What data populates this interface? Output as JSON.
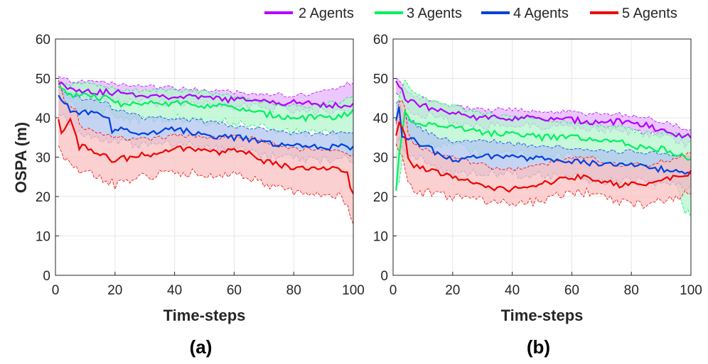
{
  "legend": [
    {
      "label": "2 Agents",
      "color": "#b000ff"
    },
    {
      "label": "3 Agents",
      "color": "#00f060"
    },
    {
      "label": "4 Agents",
      "color": "#0040e0"
    },
    {
      "label": "5 Agents",
      "color": "#f00000"
    }
  ],
  "chart_data": [
    {
      "type": "line",
      "panel_label": "(a)",
      "xlabel": "Time-steps",
      "ylabel": "OSPA (m)",
      "xlim": [
        0,
        100
      ],
      "ylim": [
        0,
        60
      ],
      "xticks": [
        "0",
        "20",
        "40",
        "60",
        "80",
        "100"
      ],
      "yticks": [
        "0",
        "10",
        "20",
        "30",
        "40",
        "50",
        "60"
      ],
      "grid": true,
      "series": [
        {
          "name": "2 Agents",
          "color": "#b000ff",
          "fill": "#e6b3ff",
          "x": [
            1,
            2,
            5,
            10,
            15,
            20,
            25,
            30,
            35,
            40,
            45,
            50,
            55,
            60,
            65,
            70,
            75,
            80,
            85,
            90,
            95,
            100
          ],
          "mean": [
            49,
            48.5,
            47.5,
            47,
            46.5,
            46.5,
            46,
            45.8,
            45.6,
            45.4,
            45.2,
            45,
            44.8,
            44.6,
            44.4,
            44.2,
            44,
            43.8,
            43.6,
            43.4,
            43.2,
            43
          ],
          "upper": [
            50,
            50,
            49.5,
            49,
            49,
            48.5,
            48.2,
            48,
            47.8,
            47.5,
            47.3,
            47,
            46.8,
            46.5,
            46.2,
            46,
            45.8,
            45.5,
            46,
            46.5,
            48,
            49
          ],
          "lower": [
            48,
            46,
            45,
            45,
            44.5,
            44.5,
            44.3,
            44,
            43.8,
            43.6,
            43.4,
            43.2,
            43,
            42.8,
            42.6,
            42.4,
            42.2,
            42,
            41.8,
            41.6,
            41.4,
            41
          ]
        },
        {
          "name": "3 Agents",
          "color": "#00f060",
          "fill": "#b3f5cc",
          "x": [
            1,
            2,
            5,
            10,
            15,
            19,
            20,
            25,
            30,
            35,
            40,
            45,
            50,
            55,
            60,
            65,
            70,
            75,
            80,
            85,
            90,
            95,
            100
          ],
          "mean": [
            48,
            47,
            46,
            45.5,
            45,
            45,
            43.5,
            43.5,
            43.5,
            43.6,
            43.8,
            43.5,
            43.2,
            43,
            42.5,
            41.5,
            41,
            40.5,
            40,
            40,
            40,
            40,
            42
          ],
          "upper": [
            49,
            49,
            48.5,
            48.5,
            48,
            47.5,
            47,
            47,
            47,
            47,
            47,
            46.8,
            46.5,
            46,
            45.5,
            45,
            44,
            43.5,
            43,
            43,
            43.5,
            44,
            45
          ],
          "lower": [
            46,
            44,
            43,
            42.5,
            42,
            41.5,
            40,
            39.5,
            39.5,
            39.5,
            39.8,
            39.5,
            39.2,
            39,
            38.5,
            38,
            37.5,
            37,
            36.5,
            36,
            36,
            35,
            28
          ]
        },
        {
          "name": "4 Agents",
          "color": "#0040e0",
          "fill": "#b3c6f0",
          "x": [
            1,
            3,
            5,
            8,
            10,
            13,
            15,
            18,
            19,
            20,
            25,
            30,
            35,
            40,
            45,
            50,
            55,
            60,
            65,
            70,
            75,
            80,
            85,
            90,
            95,
            98,
            100
          ],
          "mean": [
            46,
            44,
            42,
            41,
            41.5,
            41,
            40.5,
            40,
            36,
            37,
            36.5,
            36,
            36.5,
            37,
            36.5,
            35.5,
            35,
            35,
            34.5,
            33.5,
            33,
            33,
            32.5,
            32.5,
            32.5,
            33,
            32
          ],
          "upper": [
            48,
            47,
            46,
            45,
            45,
            44.5,
            44,
            43.5,
            42.5,
            42,
            41,
            40,
            40,
            40,
            39.5,
            39,
            38.5,
            38,
            37.5,
            37,
            36.5,
            36,
            36,
            36,
            36.5,
            36.5,
            36
          ],
          "lower": [
            42,
            40,
            38,
            36,
            36,
            35.5,
            35,
            34.5,
            33,
            34,
            33.5,
            33,
            33,
            33.5,
            33,
            32.5,
            32,
            32,
            31.5,
            30.5,
            30,
            30,
            29.5,
            29.5,
            29.5,
            30,
            29
          ]
        },
        {
          "name": "5 Agents",
          "color": "#f00000",
          "fill": "#f8c0c0",
          "x": [
            1,
            2,
            3,
            5,
            7,
            8,
            10,
            15,
            20,
            25,
            30,
            35,
            40,
            45,
            50,
            55,
            60,
            65,
            70,
            75,
            80,
            85,
            90,
            95,
            98,
            100
          ],
          "mean": [
            40,
            36,
            37,
            39,
            35,
            32,
            33,
            31,
            29,
            30,
            30.5,
            31,
            32,
            32,
            31.5,
            31,
            31.5,
            31,
            29,
            28,
            27,
            27,
            27,
            27,
            26,
            20
          ],
          "upper": [
            50,
            47,
            44,
            43,
            42,
            38,
            37,
            36,
            35,
            34.5,
            34.5,
            35,
            35.5,
            35.5,
            35,
            35,
            35.5,
            35,
            34,
            33,
            32,
            32,
            32,
            32,
            31,
            30
          ],
          "lower": [
            33,
            32,
            30,
            29,
            28,
            27,
            27,
            25,
            23,
            24,
            25,
            25.5,
            26,
            26,
            25.5,
            25,
            25.5,
            25,
            23,
            22,
            21,
            20.5,
            20.5,
            20,
            18,
            14
          ]
        }
      ]
    },
    {
      "type": "line",
      "panel_label": "(b)",
      "xlabel": "Time-steps",
      "ylabel": "",
      "xlim": [
        0,
        100
      ],
      "ylim": [
        0,
        60
      ],
      "xticks": [
        "0",
        "20",
        "40",
        "60",
        "80",
        "100"
      ],
      "yticks": [
        "0",
        "10",
        "20",
        "30",
        "40",
        "50",
        "60"
      ],
      "grid": true,
      "series": [
        {
          "name": "2 Agents",
          "color": "#b000ff",
          "fill": "#e6b3ff",
          "x": [
            1,
            2,
            4,
            6,
            10,
            15,
            20,
            25,
            30,
            35,
            40,
            45,
            50,
            55,
            60,
            65,
            70,
            75,
            80,
            85,
            90,
            95,
            100
          ],
          "mean": [
            49,
            48,
            45,
            44,
            43,
            42,
            41,
            40.5,
            40,
            40,
            40,
            40,
            39.5,
            39.5,
            39.5,
            39,
            39,
            39,
            38.5,
            38,
            37,
            36,
            35
          ],
          "upper": [
            50,
            50,
            47,
            46,
            45,
            44,
            43,
            42.5,
            42,
            42,
            42,
            42,
            41.5,
            41.5,
            41.5,
            41,
            41,
            41,
            40.5,
            40,
            39,
            38,
            37
          ],
          "lower": [
            47,
            45,
            43,
            42,
            41,
            40,
            39,
            38.5,
            38,
            38,
            38,
            38,
            37.5,
            37.5,
            37.5,
            37,
            37,
            37,
            36.5,
            36,
            35,
            34,
            33
          ]
        },
        {
          "name": "3 Agents",
          "color": "#00f060",
          "fill": "#b3f5cc",
          "x": [
            1,
            2,
            4,
            6,
            10,
            15,
            20,
            25,
            30,
            35,
            40,
            45,
            50,
            55,
            60,
            65,
            70,
            75,
            80,
            85,
            90,
            95,
            98,
            100
          ],
          "mean": [
            22,
            30,
            41,
            39,
            38,
            38,
            38,
            37,
            36,
            36,
            36,
            35.5,
            35,
            35,
            35,
            34.5,
            34,
            34,
            33,
            32,
            32,
            31,
            30,
            30
          ],
          "upper": [
            40,
            45,
            49,
            47,
            45,
            44,
            43,
            42,
            41,
            40.5,
            40,
            40,
            39.5,
            39,
            39,
            38.5,
            38,
            38,
            37,
            36,
            36,
            36,
            36,
            35
          ],
          "lower": [
            22,
            24,
            32,
            33,
            33,
            33,
            33,
            32,
            31,
            31,
            31,
            30.5,
            30,
            30,
            30,
            29.5,
            29,
            29,
            28,
            27,
            26,
            24,
            16,
            15
          ]
        },
        {
          "name": "4 Agents",
          "color": "#0040e0",
          "fill": "#b3c6f0",
          "x": [
            1,
            2,
            3,
            5,
            8,
            10,
            15,
            20,
            25,
            30,
            35,
            40,
            45,
            50,
            55,
            60,
            65,
            70,
            75,
            80,
            85,
            90,
            95,
            100
          ],
          "mean": [
            40,
            43,
            36,
            35,
            34,
            33,
            31,
            29,
            30,
            30,
            30,
            30,
            29.5,
            29.5,
            29,
            29,
            28.5,
            28,
            28,
            28,
            27.5,
            27,
            27,
            26
          ],
          "upper": [
            44,
            45,
            42,
            40,
            38,
            37,
            35,
            34,
            34,
            34,
            34,
            33.5,
            33,
            33,
            32.5,
            32.5,
            32,
            32,
            31.5,
            31.5,
            31,
            31,
            30.5,
            30
          ],
          "lower": [
            33,
            36,
            32,
            31,
            30,
            29,
            27,
            25.5,
            26,
            26,
            26,
            26,
            25.5,
            25.5,
            25,
            25,
            24.5,
            24,
            24,
            24,
            23.5,
            23,
            23,
            22
          ]
        },
        {
          "name": "5 Agents",
          "color": "#f00000",
          "fill": "#f8c0c0",
          "x": [
            1,
            2,
            3,
            4,
            5,
            7,
            10,
            15,
            20,
            25,
            30,
            35,
            40,
            45,
            50,
            55,
            60,
            65,
            70,
            75,
            80,
            85,
            90,
            95,
            100
          ],
          "mean": [
            36,
            38,
            38,
            36,
            30,
            28,
            27,
            26,
            25,
            24,
            23,
            22,
            22,
            22.5,
            23,
            24,
            25,
            25,
            24,
            23,
            23,
            23,
            24,
            25,
            26
          ],
          "upper": [
            38,
            44,
            44,
            42,
            36,
            33,
            32,
            31,
            30,
            29,
            28,
            27,
            27,
            27.5,
            28,
            29,
            30,
            30,
            29,
            28,
            28,
            28,
            29,
            29.5,
            31
          ],
          "lower": [
            34,
            32,
            30,
            28,
            24,
            22,
            21,
            20.5,
            20,
            19.5,
            19,
            18.5,
            18,
            18.5,
            19,
            20,
            21,
            21,
            20,
            19,
            18.5,
            18,
            19,
            20,
            21
          ]
        }
      ]
    }
  ]
}
